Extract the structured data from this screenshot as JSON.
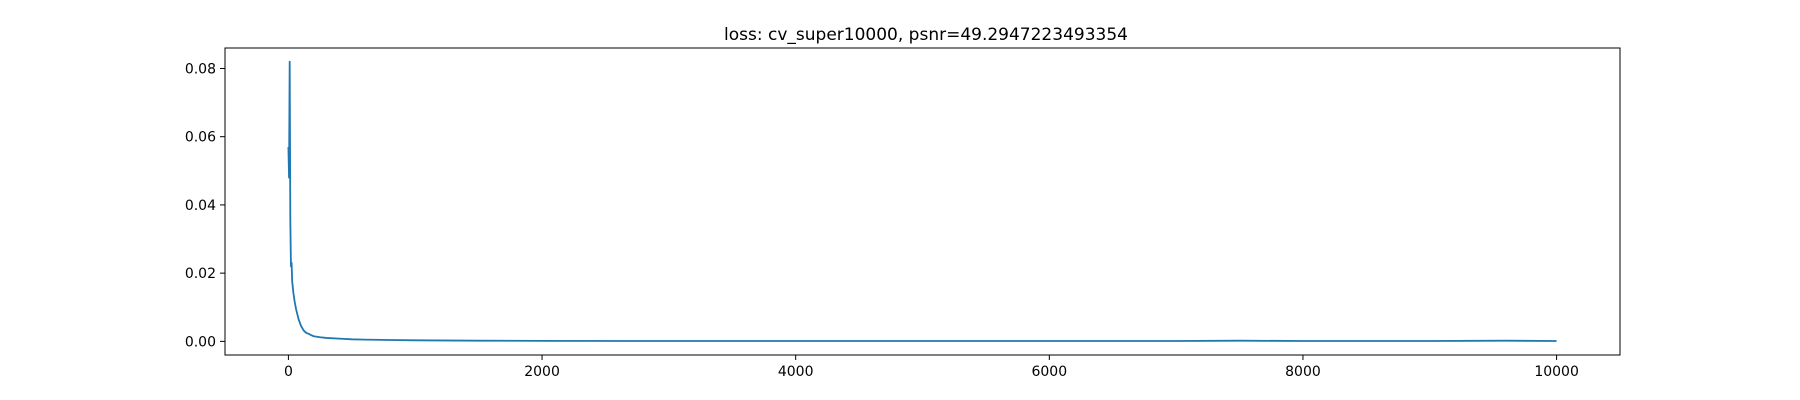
{
  "chart_data": {
    "type": "line",
    "title": "loss: cv_super10000, psnr=49.2947223493354",
    "xlabel": "",
    "ylabel": "",
    "xlim": [
      -500,
      10500
    ],
    "ylim": [
      -0.004,
      0.086
    ],
    "x_ticks": [
      0,
      2000,
      4000,
      6000,
      8000,
      10000
    ],
    "x_tick_labels": [
      "0",
      "2000",
      "4000",
      "6000",
      "8000",
      "10000"
    ],
    "y_ticks": [
      0.0,
      0.02,
      0.04,
      0.06,
      0.08
    ],
    "y_tick_labels": [
      "0.00",
      "0.02",
      "0.04",
      "0.06",
      "0.08"
    ],
    "grid": false,
    "legend": "none",
    "series": [
      {
        "color": "#1f77b4",
        "x": [
          0,
          5,
          10,
          15,
          20,
          25,
          30,
          40,
          50,
          60,
          70,
          80,
          90,
          100,
          120,
          140,
          160,
          180,
          200,
          250,
          300,
          400,
          500,
          600,
          800,
          1000,
          1500,
          2000,
          3000,
          4000,
          5000,
          6000,
          7000,
          7500,
          8000,
          9000,
          9600,
          10000
        ],
        "y": [
          0.057,
          0.048,
          0.082,
          0.036,
          0.022,
          0.023,
          0.0175,
          0.014,
          0.0115,
          0.0095,
          0.008,
          0.0065,
          0.0055,
          0.0045,
          0.0032,
          0.0025,
          0.0022,
          0.0018,
          0.0015,
          0.0012,
          0.001,
          0.0008,
          0.0006,
          0.0005,
          0.0004,
          0.0003,
          0.0002,
          0.00015,
          0.0001,
          0.0001,
          0.0001,
          0.0001,
          0.0001,
          0.0002,
          0.0001,
          0.0001,
          0.0002,
          0.0001
        ]
      }
    ]
  }
}
